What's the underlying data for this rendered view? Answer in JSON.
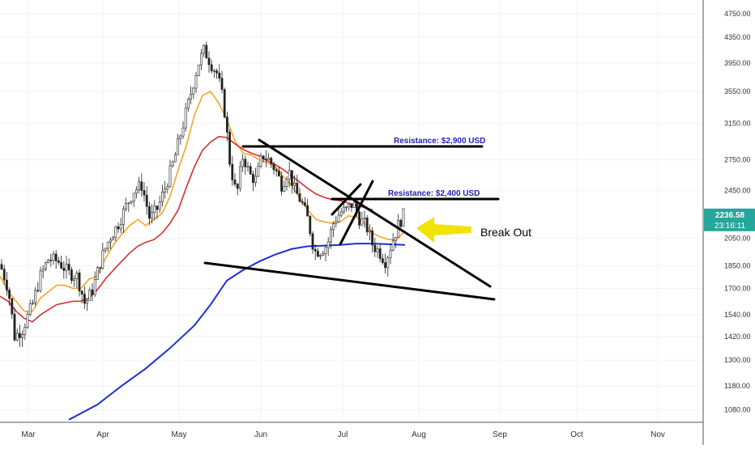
{
  "chart_data": {
    "type": "candlestick",
    "instrument_price_axis": "USD",
    "y_scale": "log",
    "y_ticks": [
      "4750.00",
      "4350.00",
      "3950.00",
      "3550.00",
      "3150.00",
      "2750.00",
      "2450.00",
      "2050.00",
      "1850.00",
      "1700.00",
      "1540.00",
      "1420.00",
      "1300.00",
      "1180.00",
      "1080.00"
    ],
    "x_ticks": [
      "Mar",
      "Apr",
      "May",
      "Jun",
      "Jul",
      "Aug",
      "Sep",
      "Oct",
      "Nov"
    ],
    "ylim": [
      1030,
      5000
    ],
    "last_price": "2236.58",
    "countdown": "23:16:11",
    "colors": {
      "up": "#26a69a",
      "down": "#ef5350",
      "ema_fast": "#f5a623",
      "ema_mid": "#d32f2f",
      "ema_slow": "#1e2fd6",
      "annotation": "#1f1fb0",
      "arrow": "#f2e205",
      "price_tag": "#26a69a"
    },
    "annotations": {
      "resistance_2900": "Resistance: $2,900 USD",
      "resistance_2400": "Resistance: $2,400 USD",
      "breakout": "Break Out"
    },
    "series": [
      {
        "name": "",
        "type": "ema",
        "color_key": "ema_fast",
        "points": [
          [
            0,
            1780
          ],
          [
            10,
            1680
          ],
          [
            20,
            1620
          ],
          [
            30,
            1560
          ],
          [
            40,
            1560
          ],
          [
            50,
            1640
          ],
          [
            60,
            1680
          ],
          [
            70,
            1720
          ],
          [
            80,
            1720
          ],
          [
            90,
            1700
          ],
          [
            100,
            1700
          ],
          [
            110,
            1760
          ],
          [
            120,
            1780
          ],
          [
            130,
            1900
          ],
          [
            140,
            2000
          ],
          [
            150,
            2080
          ],
          [
            160,
            2150
          ],
          [
            170,
            2200
          ],
          [
            180,
            2150
          ],
          [
            190,
            2200
          ],
          [
            200,
            2250
          ],
          [
            210,
            2400
          ],
          [
            220,
            2650
          ],
          [
            230,
            2900
          ],
          [
            240,
            3250
          ],
          [
            250,
            3500
          ],
          [
            260,
            3550
          ],
          [
            270,
            3400
          ],
          [
            280,
            3200
          ],
          [
            290,
            2950
          ],
          [
            300,
            2820
          ],
          [
            310,
            2800
          ],
          [
            320,
            2750
          ],
          [
            330,
            2720
          ],
          [
            340,
            2680
          ],
          [
            350,
            2580
          ],
          [
            360,
            2500
          ],
          [
            370,
            2380
          ],
          [
            380,
            2280
          ],
          [
            390,
            2200
          ],
          [
            400,
            2180
          ],
          [
            410,
            2170
          ],
          [
            420,
            2180
          ],
          [
            430,
            2230
          ],
          [
            440,
            2220
          ],
          [
            450,
            2170
          ],
          [
            460,
            2090
          ],
          [
            470,
            2060
          ],
          [
            480,
            2040
          ],
          [
            490,
            2040
          ],
          [
            500,
            2110
          ]
        ]
      },
      {
        "name": "",
        "type": "ema",
        "color_key": "ema_mid",
        "points": [
          [
            0,
            1650
          ],
          [
            10,
            1620
          ],
          [
            20,
            1560
          ],
          [
            30,
            1520
          ],
          [
            40,
            1500
          ],
          [
            50,
            1540
          ],
          [
            60,
            1570
          ],
          [
            70,
            1600
          ],
          [
            80,
            1610
          ],
          [
            90,
            1620
          ],
          [
            100,
            1620
          ],
          [
            110,
            1640
          ],
          [
            120,
            1690
          ],
          [
            130,
            1760
          ],
          [
            140,
            1820
          ],
          [
            150,
            1880
          ],
          [
            160,
            1940
          ],
          [
            170,
            1990
          ],
          [
            180,
            2020
          ],
          [
            190,
            2040
          ],
          [
            200,
            2090
          ],
          [
            210,
            2170
          ],
          [
            220,
            2280
          ],
          [
            230,
            2480
          ],
          [
            240,
            2680
          ],
          [
            250,
            2850
          ],
          [
            260,
            2940
          ],
          [
            270,
            3000
          ],
          [
            280,
            2990
          ],
          [
            290,
            2920
          ],
          [
            300,
            2860
          ],
          [
            310,
            2820
          ],
          [
            320,
            2790
          ],
          [
            330,
            2740
          ],
          [
            340,
            2700
          ],
          [
            350,
            2650
          ],
          [
            360,
            2590
          ],
          [
            370,
            2530
          ],
          [
            380,
            2470
          ],
          [
            390,
            2420
          ],
          [
            400,
            2390
          ],
          [
            410,
            2370
          ],
          [
            420,
            2360
          ],
          [
            430,
            2340
          ],
          [
            440,
            2320
          ],
          [
            450,
            2300
          ],
          [
            460,
            2280
          ]
        ]
      },
      {
        "name": "",
        "type": "ema",
        "color_key": "ema_slow",
        "points": [
          [
            85,
            1040
          ],
          [
            120,
            1100
          ],
          [
            150,
            1180
          ],
          [
            180,
            1260
          ],
          [
            210,
            1360
          ],
          [
            240,
            1480
          ],
          [
            260,
            1600
          ],
          [
            280,
            1750
          ],
          [
            300,
            1820
          ],
          [
            320,
            1880
          ],
          [
            340,
            1930
          ],
          [
            360,
            1970
          ],
          [
            380,
            1990
          ],
          [
            400,
            1995
          ],
          [
            420,
            2000
          ],
          [
            440,
            2010
          ],
          [
            460,
            2010
          ],
          [
            480,
            2005
          ],
          [
            500,
            2000
          ]
        ]
      }
    ],
    "trendlines": [
      {
        "from": [
          "x",
          300,
          "y",
          2900
        ],
        "to": [
          "x",
          595,
          "y",
          2900
        ]
      },
      {
        "from": [
          "x",
          410,
          "y",
          2400
        ],
        "to": [
          "x",
          615,
          "y",
          2400
        ]
      },
      {
        "from": [
          "x",
          320,
          "y",
          2980
        ],
        "to": [
          "x",
          605,
          "y",
          1760
        ]
      },
      {
        "from": [
          "x",
          253,
          "y",
          1920
        ],
        "to": [
          "x",
          610,
          "y",
          1660
        ]
      },
      {
        "from": [
          "x",
          410,
          "y",
          2200
        ],
        "to": [
          "x",
          445,
          "y",
          2420
        ]
      },
      {
        "from": [
          "x",
          420,
          "y",
          2030
        ],
        "to": [
          "x",
          460,
          "y",
          2560
        ]
      }
    ]
  }
}
